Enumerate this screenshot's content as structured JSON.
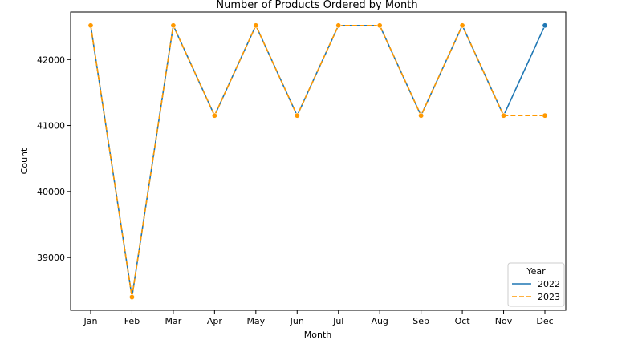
{
  "chart_data": {
    "type": "line",
    "title": "Number of Products Ordered by Month",
    "xlabel": "Month",
    "ylabel": "Count",
    "categories": [
      "Jan",
      "Feb",
      "Mar",
      "Apr",
      "May",
      "Jun",
      "Jul",
      "Aug",
      "Sep",
      "Oct",
      "Nov",
      "Dec"
    ],
    "series": [
      {
        "name": "2022",
        "values": [
          42516,
          38400,
          42516,
          41150,
          42516,
          41150,
          42516,
          42516,
          41150,
          42516,
          41150,
          42516
        ],
        "color": "#1f77b4",
        "linestyle": "solid"
      },
      {
        "name": "2023",
        "values": [
          42516,
          38400,
          42516,
          41150,
          42516,
          41150,
          42516,
          42516,
          41150,
          42516,
          41150,
          41150
        ],
        "color": "#ff9900",
        "linestyle": "dashed"
      }
    ],
    "yticks": [
      39000,
      40000,
      41000,
      42000
    ],
    "ylim": [
      38200,
      42720
    ],
    "grid": false,
    "legend": {
      "title": "Year",
      "placement": "lower right"
    }
  }
}
